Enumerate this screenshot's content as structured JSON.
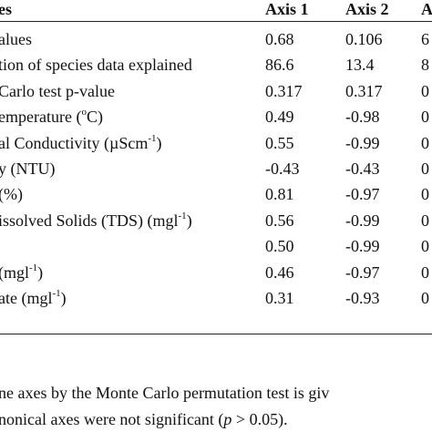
{
  "table": {
    "header": [
      "es",
      "Axis 1",
      "Axis 2",
      "A"
    ],
    "rows": [
      [
        {
          "text": "alues"
        },
        "0.68",
        "0.106",
        "6"
      ],
      [
        {
          "text": "tion of species data explained"
        },
        "86.6",
        "13.4",
        "8"
      ],
      [
        {
          "text": "Carlo test p-value"
        },
        "0.317",
        "0.317",
        "0"
      ],
      [
        {
          "text": "emperature (",
          "sup": "o",
          "after": "C)"
        },
        "0.49",
        "-0.98",
        "0"
      ],
      [
        {
          "text": "al Conductivity (µScm",
          "sup": "-1",
          "after": ")"
        },
        "0.55",
        "-0.99",
        "0"
      ],
      [
        {
          "text": "y (NTU)"
        },
        "-0.43",
        "-0.43",
        "0"
      ],
      [
        {
          "text": " (%)"
        },
        "0.81",
        "-0.97",
        "0"
      ],
      [
        {
          "text": "issolved Solids (TDS) (mgl",
          "sup": "-1",
          "after": ")"
        },
        "0.56",
        "-0.99",
        "0"
      ],
      [
        null,
        "0.50",
        "-0.99",
        "0"
      ],
      [
        {
          "text": "(mgl",
          "sup": "-1",
          "after": ")"
        },
        "0.46",
        "-0.97",
        "0"
      ],
      [
        {
          "text": "ate (mgl",
          "sup": "-1",
          "after": ")"
        },
        "0.31",
        "-0.93",
        "0"
      ]
    ]
  },
  "footnote": {
    "line1": "ne axes by the Monte Carlo permutation test is giv",
    "line2": [
      "nonical axes were not significant (",
      "p",
      " > 0.05)."
    ]
  }
}
